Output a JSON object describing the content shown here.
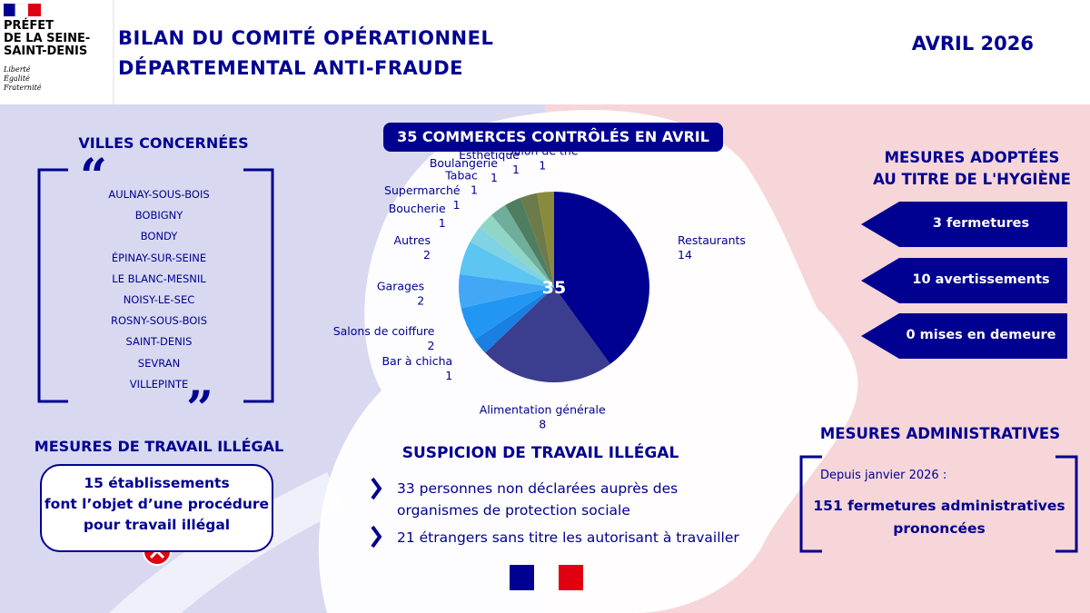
{
  "header": {
    "logo": [
      "PRÉFET",
      "DE LA SEINE-",
      "SAINT-DENIS"
    ],
    "motto": [
      "Liberté",
      "Égalité",
      "Fraternité"
    ],
    "title": [
      "BILAN DU COMITÉ OPÉRATIONNEL",
      "DÉPARTEMENTAL ANTI-FRAUDE"
    ],
    "date": "AVRIL 2026"
  },
  "villes": {
    "title": "VILLES CONCERNÉES",
    "items": [
      "AULNAY-SOUS-BOIS",
      "BOBIGNY",
      "BONDY",
      "ÉPINAY-SUR-SEINE",
      "LE BLANC-MESNIL",
      "NOISY-LE-SEC",
      "ROSNY-SOUS-BOIS",
      "SAINT-DENIS",
      "SEVRAN",
      "VILLEPINTE"
    ]
  },
  "travail_illegal": {
    "title": "MESURES DE TRAVAIL ILLÉGAL",
    "text": [
      "15 établissements",
      "font l’objet d’une procédure",
      "pour travail illégal"
    ]
  },
  "chart_data": {
    "type": "pie",
    "title": "35 COMMERCES CONTRÔLÉS EN AVRIL",
    "total": 35,
    "categories": [
      "Restaurants",
      "Alimentation générale",
      "Bar à chicha",
      "Salons de coiffure",
      "Garages",
      "Autres",
      "Boucherie",
      "Supermarché",
      "Tabac",
      "Boulangerie",
      "Esthétique",
      "Salon de thé"
    ],
    "values": [
      14,
      8,
      1,
      2,
      2,
      2,
      1,
      1,
      1,
      1,
      1,
      1
    ],
    "colors": [
      "#000091",
      "#3b3d8e",
      "#1a7fe0",
      "#2196f3",
      "#42a8f5",
      "#5cc5f2",
      "#7fd3e3",
      "#8fd6c6",
      "#6fae9a",
      "#4f7d5f",
      "#6d7a4a",
      "#8a8a3c"
    ]
  },
  "suspicion": {
    "title": "SUSPICION DE TRAVAIL ILLÉGAL",
    "items": [
      [
        "33 personnes non déclarées auprès des",
        "organismes de protection sociale"
      ],
      [
        "21 étrangers sans titre les autorisant à travailler"
      ]
    ]
  },
  "hygiene": {
    "title": [
      "MESURES ADOPTÉES",
      "AU TITRE DE L'HYGIÈNE"
    ],
    "items": [
      "3 fermetures",
      "10 avertissements",
      "0 mises en demeure"
    ]
  },
  "administratives": {
    "title": "MESURES ADMINISTRATIVES",
    "since": "Depuis janvier 2026 :",
    "text": [
      "151 fermetures administratives",
      "prononcées"
    ]
  }
}
